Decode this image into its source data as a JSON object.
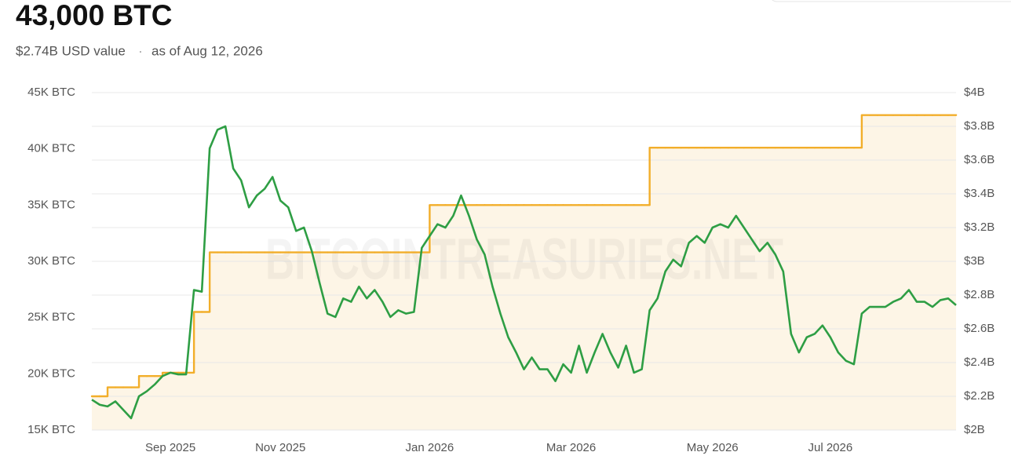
{
  "chart_data": {
    "type": "line",
    "title": "43,000 BTC",
    "subtitle": "$2.74B USD value",
    "date_note": "as of Aug 12, 2026",
    "watermark": "BITCOINTREASURIES.NET",
    "categories": [
      null,
      null,
      null,
      null,
      null,
      null,
      null,
      null,
      null,
      null,
      "Sep 2025",
      null,
      null,
      null,
      null,
      null,
      null,
      null,
      null,
      null,
      null,
      null,
      null,
      null,
      "Nov 2025",
      null,
      null,
      null,
      null,
      null,
      null,
      null,
      null,
      null,
      null,
      null,
      null,
      null,
      null,
      null,
      null,
      null,
      null,
      "Jan 2026",
      null,
      null,
      null,
      null,
      null,
      null,
      null,
      null,
      null,
      null,
      null,
      null,
      null,
      null,
      null,
      null,
      null,
      "Mar 2026",
      null,
      null,
      null,
      null,
      null,
      null,
      null,
      null,
      null,
      null,
      null,
      null,
      null,
      null,
      null,
      null,
      null,
      "May 2026",
      null,
      null,
      null,
      null,
      null,
      null,
      null,
      null,
      null,
      null,
      null,
      null,
      null,
      null,
      "Jul 2026",
      null,
      null,
      null,
      null,
      null,
      null,
      null,
      null,
      null,
      null,
      null,
      null,
      null,
      null,
      null,
      null
    ],
    "series": [
      {
        "color": "#f2ae2a",
        "step": true,
        "fill": "#fdf5e6",
        "values": [
          18000,
          18000,
          18800,
          18800,
          18800,
          18800,
          19800,
          19800,
          19800,
          20100,
          20100,
          20100,
          20100,
          25500,
          25500,
          30800,
          30800,
          30800,
          30800,
          30800,
          30800,
          30800,
          30800,
          30800,
          30800,
          30800,
          30800,
          30800,
          30800,
          30800,
          30800,
          30800,
          30800,
          30800,
          30800,
          30800,
          30800,
          30800,
          30800,
          30800,
          30800,
          30800,
          30800,
          35000,
          35000,
          35000,
          35000,
          35000,
          35000,
          35000,
          35000,
          35000,
          35000,
          35000,
          35000,
          35000,
          35000,
          35000,
          35000,
          35000,
          35000,
          35000,
          35000,
          35000,
          35000,
          35000,
          35000,
          35000,
          35000,
          35000,
          35000,
          40100,
          40100,
          40100,
          40100,
          40100,
          40100,
          40100,
          40100,
          40100,
          40100,
          40100,
          40100,
          40100,
          40100,
          40100,
          40100,
          40100,
          40100,
          40100,
          40100,
          40100,
          40100,
          40100,
          40100,
          40100,
          40100,
          40100,
          43000,
          43000,
          43000,
          43000,
          43000,
          43000,
          43000,
          43000,
          43000,
          43000,
          43000,
          43000,
          43000
        ]
      },
      {
        "color": "#2e9e44",
        "axis": "y2",
        "values": [
          2.18,
          2.15,
          2.14,
          2.17,
          2.12,
          2.07,
          2.2,
          2.23,
          2.27,
          2.32,
          2.34,
          2.33,
          2.33,
          2.83,
          2.82,
          3.67,
          3.78,
          3.8,
          3.55,
          3.48,
          3.32,
          3.39,
          3.43,
          3.5,
          3.36,
          3.32,
          3.18,
          3.2,
          3.06,
          2.87,
          2.69,
          2.67,
          2.78,
          2.76,
          2.85,
          2.78,
          2.83,
          2.76,
          2.67,
          2.71,
          2.69,
          2.7,
          3.08,
          3.15,
          3.22,
          3.2,
          3.27,
          3.39,
          3.27,
          3.13,
          3.04,
          2.85,
          2.69,
          2.55,
          2.46,
          2.36,
          2.43,
          2.36,
          2.36,
          2.29,
          2.39,
          2.34,
          2.5,
          2.34,
          2.46,
          2.57,
          2.46,
          2.37,
          2.5,
          2.34,
          2.36,
          2.71,
          2.78,
          2.94,
          3.01,
          2.97,
          3.11,
          3.15,
          3.11,
          3.2,
          3.22,
          3.2,
          3.27,
          3.2,
          3.13,
          3.06,
          3.11,
          3.04,
          2.94,
          2.57,
          2.46,
          2.55,
          2.57,
          2.62,
          2.55,
          2.46,
          2.41,
          2.39,
          2.69,
          2.73,
          2.73,
          2.73,
          2.76,
          2.78,
          2.83,
          2.76,
          2.76,
          2.73,
          2.77,
          2.78,
          2.74
        ]
      }
    ],
    "ylim": [
      15000,
      45000
    ],
    "yticks": [
      {
        "value": 15000,
        "label": "15K BTC"
      },
      {
        "value": 20000,
        "label": "20K BTC"
      },
      {
        "value": 25000,
        "label": "25K BTC"
      },
      {
        "value": 30000,
        "label": "30K BTC"
      },
      {
        "value": 35000,
        "label": "35K BTC"
      },
      {
        "value": 40000,
        "label": "40K BTC"
      },
      {
        "value": 45000,
        "label": "45K BTC"
      }
    ],
    "y2lim": [
      2,
      4
    ],
    "y2ticks": [
      {
        "value": 2,
        "label": "$2B"
      },
      {
        "value": 2.2,
        "label": "$2.2B"
      },
      {
        "value": 2.4,
        "label": "$2.4B"
      },
      {
        "value": 2.6,
        "label": "$2.6B"
      },
      {
        "value": 2.8,
        "label": "$2.8B"
      },
      {
        "value": 3,
        "label": "$3B"
      },
      {
        "value": 3.2,
        "label": "$3.2B"
      },
      {
        "value": 3.4,
        "label": "$3.4B"
      },
      {
        "value": 3.6,
        "label": "$3.6B"
      },
      {
        "value": 3.8,
        "label": "$3.8B"
      },
      {
        "value": 4,
        "label": "$4B"
      }
    ],
    "grid": true
  }
}
